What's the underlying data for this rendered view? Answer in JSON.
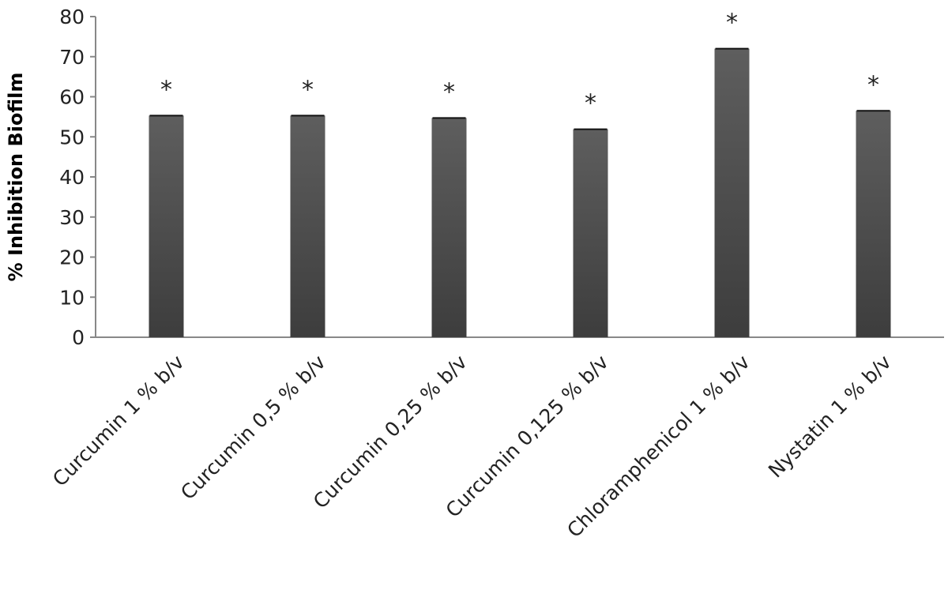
{
  "chart_data": {
    "type": "bar",
    "title": "",
    "xlabel": "",
    "ylabel": "% Inhibition Biofilm",
    "ylim": [
      0,
      80
    ],
    "yticks": [
      0,
      10,
      20,
      30,
      40,
      50,
      60,
      70,
      80
    ],
    "categories": [
      "Curcumin 1 % b/v",
      "Curcumin 0,5 % b/v",
      "Curcumin 0,25 % b/v",
      "Curcumin 0,125 % b/v",
      "Chloramphenicol 1 % b/v",
      "Nystatin 1 % b/v"
    ],
    "values": [
      55.3,
      55.3,
      54.7,
      51.9,
      72.0,
      56.5
    ],
    "significance": [
      "*",
      "*",
      "*",
      "*",
      "*",
      "*"
    ],
    "colors": {
      "bar_top": "#5e5e5e",
      "bar_bottom": "#3d3d3d",
      "axis": "#888888",
      "text": "#222222"
    }
  }
}
